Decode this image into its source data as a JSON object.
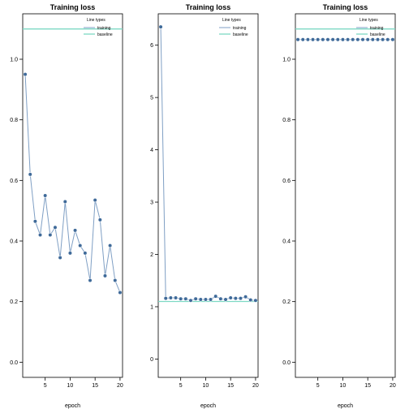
{
  "chart_data": [
    {
      "type": "line",
      "title": "Training loss",
      "xlabel": "epoch",
      "ylabel": "",
      "xlim": [
        0.5,
        20.5
      ],
      "ylim": [
        -0.05,
        1.15
      ],
      "xticks": [
        5,
        10,
        15,
        20
      ],
      "yticks": [
        0.0,
        0.2,
        0.4,
        0.6,
        0.8,
        1.0
      ],
      "ytick_labels": [
        "0.0",
        "0.2",
        "0.4",
        "0.6",
        "0.8",
        "1.0"
      ],
      "grid": false,
      "legend": {
        "title": "Line types",
        "position": "top-right",
        "entries": [
          "training",
          "baseline"
        ]
      },
      "baseline": 1.1,
      "series": [
        {
          "name": "training",
          "x": [
            1,
            2,
            3,
            4,
            5,
            6,
            7,
            8,
            9,
            10,
            11,
            12,
            13,
            14,
            15,
            16,
            17,
            18,
            19,
            20
          ],
          "values": [
            0.95,
            0.62,
            0.465,
            0.42,
            0.55,
            0.42,
            0.445,
            0.345,
            0.53,
            0.36,
            0.435,
            0.385,
            0.36,
            0.27,
            0.535,
            0.47,
            0.285,
            0.385,
            0.27,
            0.23
          ]
        }
      ]
    },
    {
      "type": "line",
      "title": "Training loss",
      "xlabel": "epoch",
      "ylabel": "",
      "xlim": [
        0.5,
        20.5
      ],
      "ylim": [
        -0.35,
        6.6
      ],
      "xticks": [
        5,
        10,
        15,
        20
      ],
      "yticks": [
        0,
        1,
        2,
        3,
        4,
        5,
        6
      ],
      "ytick_labels": [
        "0",
        "1",
        "2",
        "3",
        "4",
        "5",
        "6"
      ],
      "grid": false,
      "legend": {
        "title": "Line types",
        "position": "top-right",
        "entries": [
          "training",
          "baseline"
        ]
      },
      "baseline": 1.1,
      "series": [
        {
          "name": "training",
          "x": [
            1,
            2,
            3,
            4,
            5,
            6,
            7,
            8,
            9,
            10,
            11,
            12,
            13,
            14,
            15,
            16,
            17,
            18,
            19,
            20
          ],
          "values": [
            6.35,
            1.16,
            1.17,
            1.17,
            1.15,
            1.15,
            1.12,
            1.15,
            1.14,
            1.14,
            1.14,
            1.2,
            1.15,
            1.14,
            1.17,
            1.16,
            1.16,
            1.19,
            1.13,
            1.12
          ]
        }
      ]
    },
    {
      "type": "line",
      "title": "Training loss",
      "xlabel": "epoch",
      "ylabel": "",
      "xlim": [
        0.5,
        20.5
      ],
      "ylim": [
        -0.05,
        1.15
      ],
      "xticks": [
        5,
        10,
        15,
        20
      ],
      "yticks": [
        0.0,
        0.2,
        0.4,
        0.6,
        0.8,
        1.0
      ],
      "ytick_labels": [
        "0.0",
        "0.2",
        "0.4",
        "0.6",
        "0.8",
        "1.0"
      ],
      "grid": false,
      "legend": {
        "title": "Line types",
        "position": "top-right",
        "entries": [
          "training",
          "baseline"
        ]
      },
      "baseline": 1.1,
      "series": [
        {
          "name": "training",
          "x": [
            1,
            2,
            3,
            4,
            5,
            6,
            7,
            8,
            9,
            10,
            11,
            12,
            13,
            14,
            15,
            16,
            17,
            18,
            19,
            20
          ],
          "values": [
            1.065,
            1.065,
            1.065,
            1.065,
            1.065,
            1.065,
            1.065,
            1.065,
            1.065,
            1.065,
            1.065,
            1.065,
            1.065,
            1.065,
            1.065,
            1.065,
            1.065,
            1.065,
            1.065,
            1.065
          ]
        }
      ]
    }
  ],
  "colors": {
    "training_line": "#7f9fc4",
    "training_point": "#3f6a99",
    "baseline": "#7ed9c4",
    "axis": "#000000",
    "background": "#ffffff"
  }
}
